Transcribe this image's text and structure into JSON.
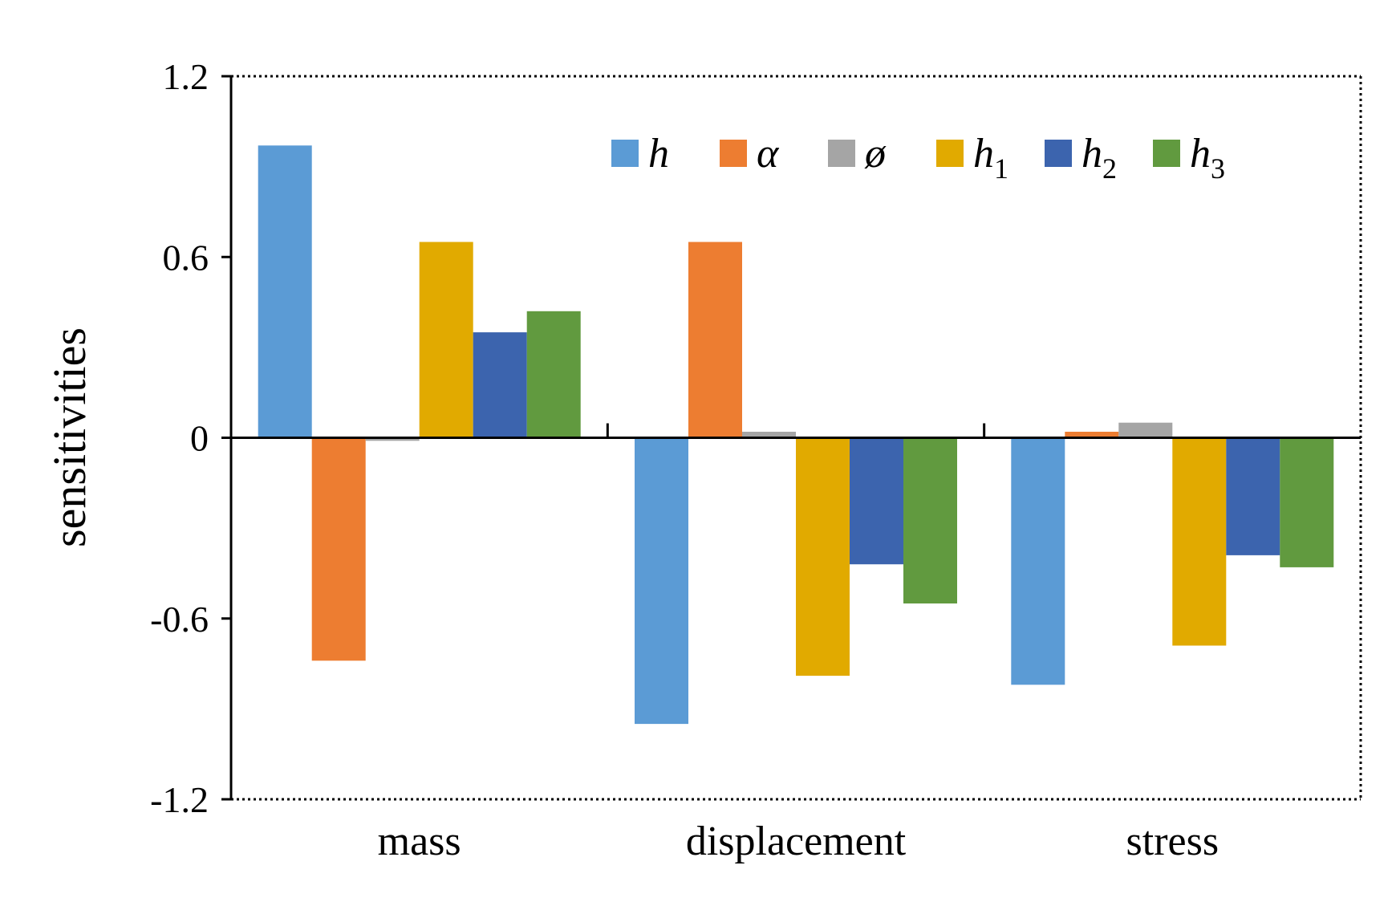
{
  "chart_data": {
    "type": "bar",
    "categories": [
      "mass",
      "displacement",
      "stress"
    ],
    "series": [
      {
        "name": "h",
        "sub": "",
        "color": "#5B9BD5",
        "values": [
          0.97,
          -0.95,
          -0.82
        ]
      },
      {
        "name": "α",
        "sub": "",
        "color": "#ED7D31",
        "values": [
          -0.74,
          0.65,
          0.02
        ]
      },
      {
        "name": "ø",
        "sub": "",
        "color": "#A5A5A5",
        "values": [
          -0.01,
          0.02,
          0.05
        ]
      },
      {
        "name": "h",
        "sub": "1",
        "color": "#E1AA00",
        "values": [
          0.65,
          -0.79,
          -0.69
        ]
      },
      {
        "name": "h",
        "sub": "2",
        "color": "#3C64AE",
        "values": [
          0.35,
          -0.42,
          -0.39
        ]
      },
      {
        "name": "h",
        "sub": "3",
        "color": "#619A3F",
        "values": [
          0.42,
          -0.55,
          -0.43
        ]
      }
    ],
    "ylabel": "sensitivities",
    "xlabel": "",
    "ylim": [
      -1.2,
      1.2
    ],
    "yticks": [
      "1.2",
      "0.6",
      "0",
      "-0.6",
      "-1.2"
    ],
    "legend_position": "top-right",
    "grid": false
  }
}
